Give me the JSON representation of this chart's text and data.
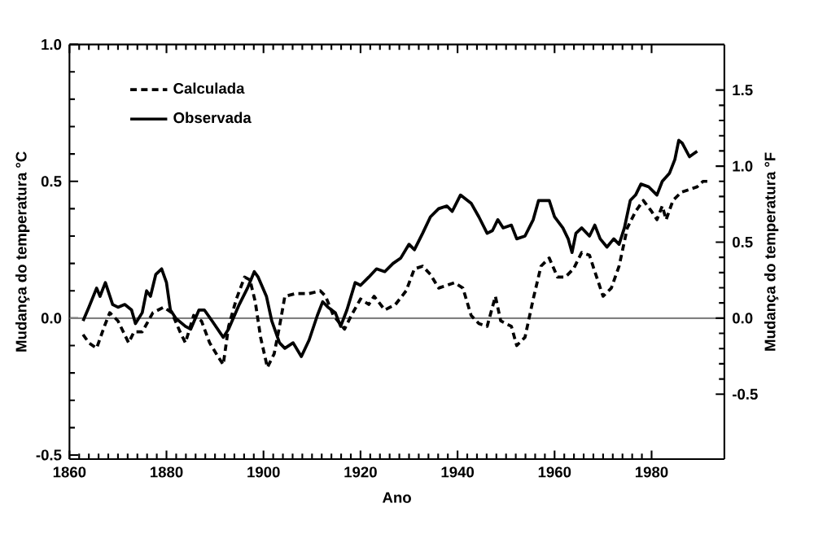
{
  "chart_data": {
    "type": "line",
    "xlabel": "Ano",
    "ylabel": "Mudança do temperatura °C",
    "y2label": "Mudança do temperatura °F",
    "xlim": [
      1860,
      1995
    ],
    "xticks": [
      1860,
      1880,
      1900,
      1920,
      1940,
      1960,
      1980
    ],
    "ylim": [
      -0.515,
      1.0
    ],
    "yticks": [
      -0.5,
      {
        "value": 0,
        "label": "0.0"
      },
      0.5,
      {
        "value": 1.0,
        "label": "1.0"
      }
    ],
    "y2lim": [
      -0.927,
      1.8
    ],
    "y2ticks": [
      -0.5,
      {
        "value": 0,
        "label": "0.0"
      },
      0.5,
      {
        "value": 1.0,
        "label": "1.0"
      },
      1.5
    ],
    "legend": "top left",
    "grid": false,
    "ref_lines": [
      {
        "axis": "y",
        "value": 0,
        "color": "#808080"
      }
    ],
    "series": [
      {
        "name": "Calculada",
        "color": "#000000",
        "line_style": "dashed",
        "x": [
          1862.8,
          1864,
          1865.6,
          1867.2,
          1868.3,
          1870,
          1872.2,
          1873.3,
          1875,
          1877.2,
          1879.4,
          1881.1,
          1882.8,
          1883.9,
          1885.6,
          1887.2,
          1888.9,
          1890.6,
          1891.7,
          1892.8,
          1894.4,
          1896.1,
          1897.2,
          1898.3,
          1899.4,
          1900.8,
          1902.2,
          1903.3,
          1904.4,
          1906.7,
          1909.4,
          1911.7,
          1912.8,
          1914.4,
          1916.7,
          1918.1,
          1920,
          1921.7,
          1922.8,
          1925,
          1927.2,
          1929.4,
          1931.1,
          1932.8,
          1934.4,
          1936.1,
          1937.8,
          1939.4,
          1941.1,
          1942.8,
          1944.4,
          1946.1,
          1947.8,
          1948.9,
          1951.1,
          1952.2,
          1953.9,
          1955.6,
          1957.2,
          1958.9,
          1960.6,
          1962.2,
          1963.9,
          1965.6,
          1967.2,
          1968.3,
          1970,
          1971.7,
          1973.3,
          1975,
          1976.7,
          1978.3,
          1980,
          1981.1,
          1982.2,
          1983,
          1984.4,
          1986.1,
          1987.8,
          1989.4,
          1990.6,
          1992.2
        ],
        "values": [
          -0.06,
          -0.09,
          -0.11,
          -0.03,
          0.02,
          -0.01,
          -0.09,
          -0.05,
          -0.05,
          0.02,
          0.04,
          0.02,
          -0.05,
          -0.09,
          0.01,
          -0.01,
          -0.09,
          -0.14,
          -0.17,
          -0.03,
          0.07,
          0.15,
          0.14,
          0.06,
          -0.07,
          -0.18,
          -0.13,
          -0.03,
          0.08,
          0.09,
          0.09,
          0.1,
          0.08,
          0.01,
          -0.04,
          0.01,
          0.07,
          0.05,
          0.08,
          0.03,
          0.05,
          0.1,
          0.18,
          0.19,
          0.16,
          0.11,
          0.12,
          0.13,
          0.11,
          0.01,
          -0.02,
          -0.03,
          0.08,
          -0.01,
          -0.03,
          -0.1,
          -0.07,
          0.07,
          0.19,
          0.22,
          0.15,
          0.15,
          0.18,
          0.24,
          0.23,
          0.17,
          0.08,
          0.11,
          0.19,
          0.33,
          0.39,
          0.43,
          0.39,
          0.36,
          0.41,
          0.36,
          0.43,
          0.46,
          0.47,
          0.48,
          0.5,
          0.5
        ]
      },
      {
        "name": "Observada",
        "color": "#000000",
        "line_style": "solid",
        "x": [
          1862.8,
          1864,
          1865.6,
          1866.3,
          1867.4,
          1868.9,
          1870,
          1871.4,
          1872.8,
          1873.6,
          1875,
          1875.9,
          1876.7,
          1877.8,
          1879,
          1880,
          1880.8,
          1881.9,
          1883.9,
          1885,
          1886.7,
          1887.8,
          1889.4,
          1891.7,
          1892.8,
          1895,
          1896.7,
          1898.1,
          1898.9,
          1900.6,
          1901.7,
          1903.3,
          1904.4,
          1906.1,
          1907.8,
          1909.4,
          1911.1,
          1912.2,
          1913.3,
          1914.8,
          1915.9,
          1917.2,
          1918.9,
          1920,
          1921.7,
          1923.3,
          1925,
          1926.7,
          1928.3,
          1930,
          1931.1,
          1932.8,
          1934.4,
          1936.1,
          1937.8,
          1938.9,
          1940.6,
          1942.8,
          1944.4,
          1946.1,
          1947.2,
          1948.3,
          1949.4,
          1951.1,
          1952.2,
          1953.9,
          1955.6,
          1956.7,
          1958.9,
          1960,
          1961.7,
          1962.8,
          1963.6,
          1964.4,
          1965.6,
          1967.2,
          1968.3,
          1969.4,
          1970.8,
          1972.2,
          1973.3,
          1974.4,
          1975.6,
          1976.7,
          1977.8,
          1979.4,
          1981.1,
          1982.2,
          1983.7,
          1984.8,
          1985.6,
          1986.3,
          1987.8,
          1989.4
        ],
        "values": [
          -0.01,
          0.04,
          0.11,
          0.08,
          0.13,
          0.05,
          0.04,
          0.05,
          0.03,
          -0.02,
          0.02,
          0.1,
          0.08,
          0.16,
          0.18,
          0.13,
          0.03,
          0,
          -0.03,
          -0.04,
          0.03,
          0.03,
          -0.01,
          -0.07,
          -0.04,
          0.05,
          0.11,
          0.17,
          0.15,
          0.08,
          -0.01,
          -0.09,
          -0.11,
          -0.09,
          -0.14,
          -0.08,
          0.01,
          0.06,
          0.04,
          0.02,
          -0.03,
          0.03,
          0.13,
          0.12,
          0.15,
          0.18,
          0.17,
          0.2,
          0.22,
          0.27,
          0.25,
          0.31,
          0.37,
          0.4,
          0.41,
          0.39,
          0.45,
          0.42,
          0.37,
          0.31,
          0.32,
          0.36,
          0.33,
          0.34,
          0.29,
          0.3,
          0.36,
          0.43,
          0.43,
          0.37,
          0.33,
          0.29,
          0.24,
          0.31,
          0.33,
          0.3,
          0.34,
          0.29,
          0.26,
          0.29,
          0.27,
          0.33,
          0.43,
          0.45,
          0.49,
          0.48,
          0.45,
          0.5,
          0.53,
          0.58,
          0.65,
          0.64,
          0.59,
          0.61
        ]
      }
    ]
  }
}
